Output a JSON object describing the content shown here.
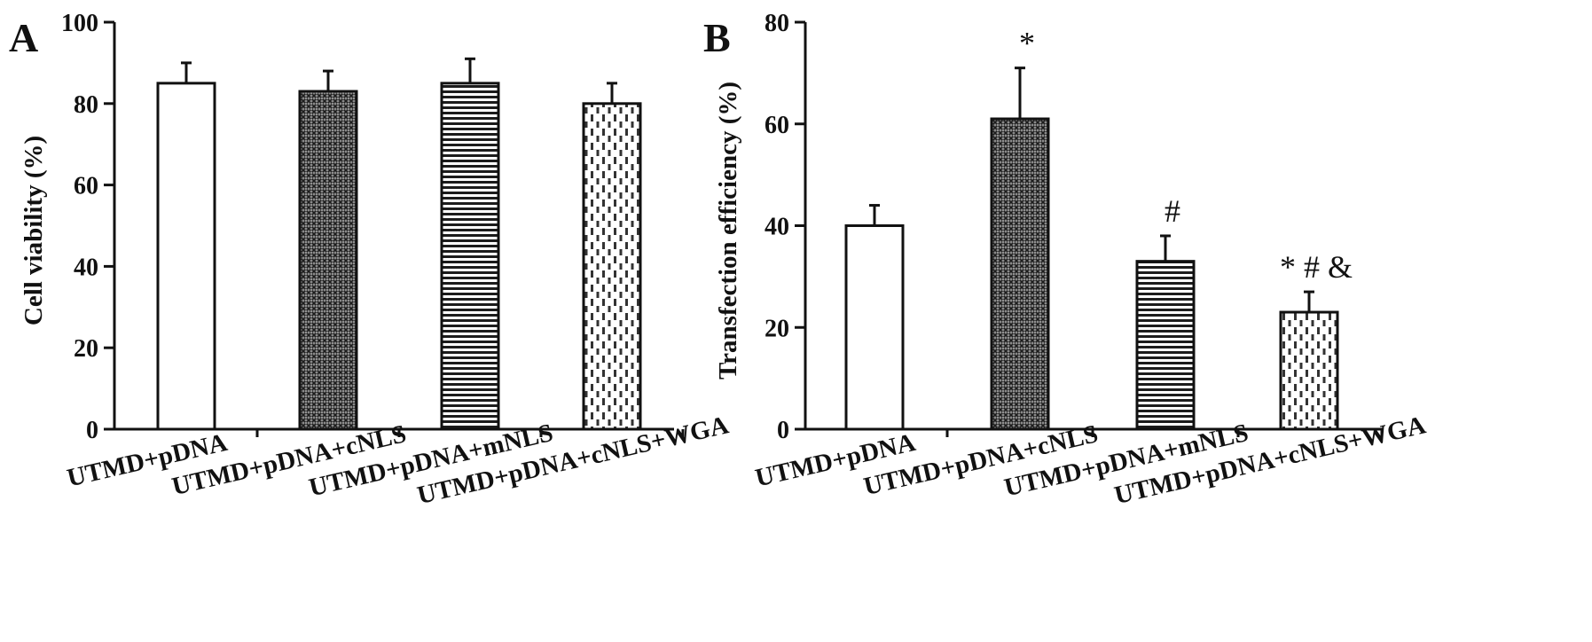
{
  "figure": {
    "colors": {
      "ink": "#111111",
      "background": "#ffffff"
    }
  },
  "chart_data": [
    {
      "type": "bar",
      "panel_label": "A",
      "title": "",
      "xlabel": "",
      "ylabel": "Cell viability (%)",
      "ylim": [
        0,
        100
      ],
      "yticks": [
        0,
        20,
        40,
        60,
        80,
        100
      ],
      "grid": false,
      "legend": "none",
      "categories": [
        "UTMD+pDNA",
        "UTMD+pDNA+cNLS",
        "UTMD+pDNA+mNLS",
        "UTMD+pDNA+cNLS+WGA"
      ],
      "values": [
        85,
        83,
        85,
        80
      ],
      "errors": [
        5,
        5,
        6,
        5
      ],
      "annotations": [
        "",
        "",
        "",
        ""
      ],
      "patterns": [
        "open",
        "crosshatch",
        "horizontal-lines",
        "dashed-vertical"
      ]
    },
    {
      "type": "bar",
      "panel_label": "B",
      "title": "",
      "xlabel": "",
      "ylabel": "Transfection efficiency (%)",
      "ylim": [
        0,
        80
      ],
      "yticks": [
        0,
        20,
        40,
        60,
        80
      ],
      "grid": false,
      "legend": "none",
      "categories": [
        "UTMD+pDNA",
        "UTMD+pDNA+cNLS",
        "UTMD+pDNA+mNLS",
        "UTMD+pDNA+cNLS+WGA"
      ],
      "values": [
        40,
        61,
        33,
        23
      ],
      "errors": [
        4,
        10,
        5,
        4
      ],
      "annotations": [
        "",
        "*",
        "#",
        "* # &"
      ],
      "patterns": [
        "open",
        "crosshatch",
        "horizontal-lines",
        "dashed-vertical"
      ]
    }
  ]
}
